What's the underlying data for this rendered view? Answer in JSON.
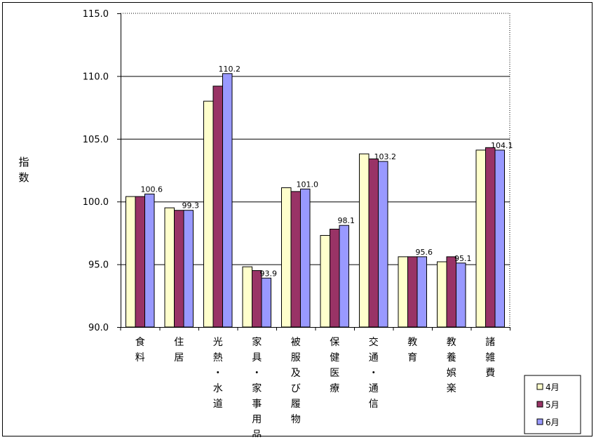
{
  "chart_data": {
    "type": "bar",
    "ylabel": "指数",
    "ylim": [
      90,
      115
    ],
    "yticks": [
      "90.0",
      "95.0",
      "100.0",
      "105.0",
      "110.0",
      "115.0"
    ],
    "grid": "horizontal",
    "legend_placement": "bottom-right",
    "categories": [
      "食料",
      "住居",
      "光熱・水道",
      "家具・家事用品",
      "被服及び履物",
      "保健医療",
      "交通・通信",
      "教育",
      "教養娯楽",
      "諸雑費"
    ],
    "series": [
      {
        "name": "4月",
        "color": "#FFFFCC",
        "values": [
          100.4,
          99.5,
          108.0,
          94.8,
          101.1,
          97.3,
          103.8,
          95.6,
          95.2,
          104.1
        ]
      },
      {
        "name": "5月",
        "color": "#993366",
        "values": [
          100.4,
          99.3,
          109.2,
          94.5,
          100.8,
          97.8,
          103.4,
          95.6,
          95.6,
          104.3
        ]
      },
      {
        "name": "6月",
        "color": "#9999FF",
        "values": [
          100.6,
          99.3,
          110.2,
          93.9,
          101.0,
          98.1,
          103.2,
          95.6,
          95.1,
          104.1
        ]
      }
    ],
    "data_labels": [
      "100.6",
      "99.3",
      "110.2",
      "93.9",
      "101.0",
      "98.1",
      "103.2",
      "95.6",
      "95.1",
      "104.1"
    ]
  }
}
